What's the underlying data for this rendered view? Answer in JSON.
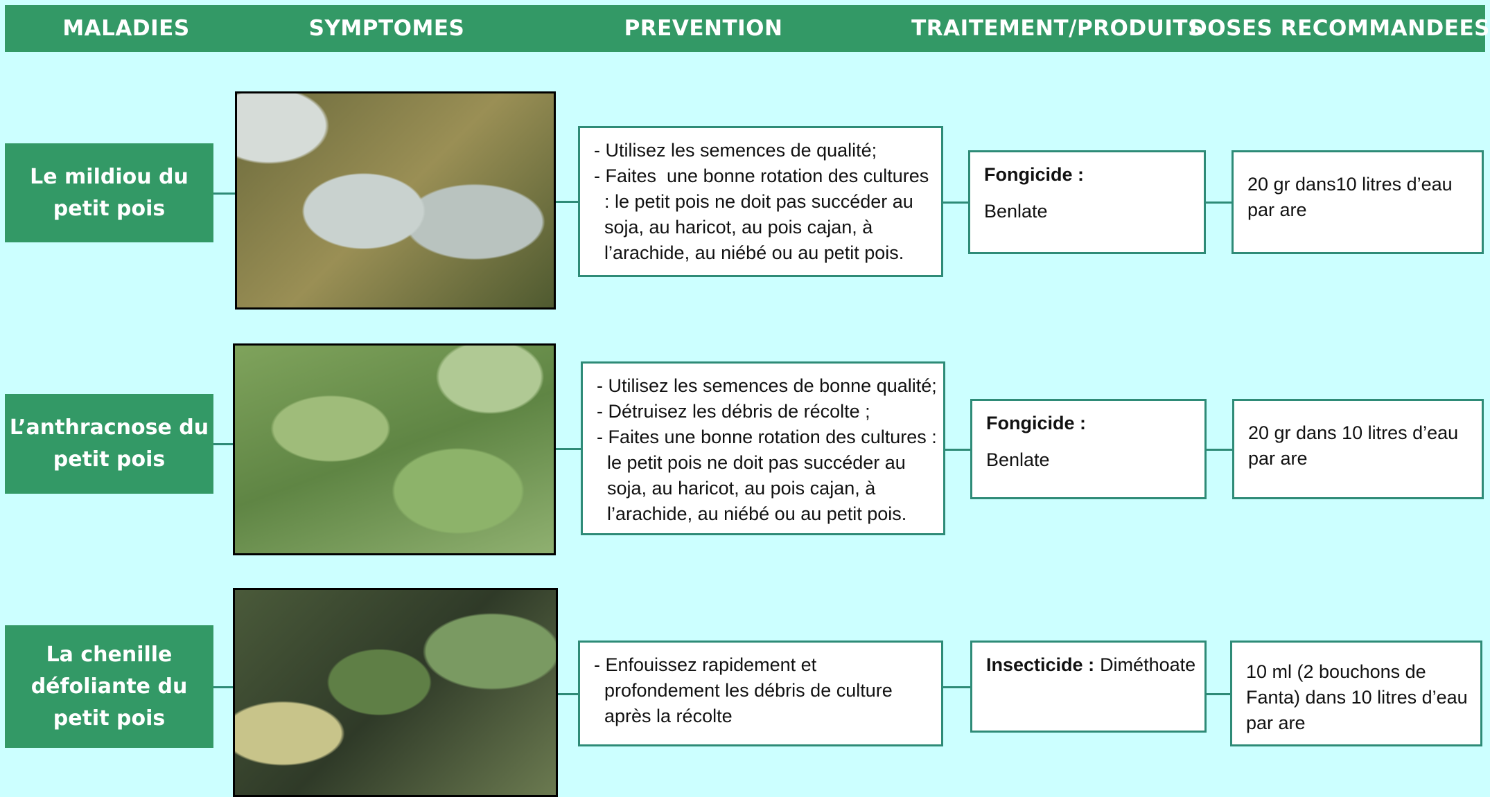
{
  "header": {
    "columns": [
      "MALADIES",
      "SYMPTOMES",
      "PREVENTION",
      "TRAITEMENT/PRODUITS",
      "DOSES RECOMMANDEES"
    ]
  },
  "rows": [
    {
      "disease": [
        "Le mildiou du",
        "petit pois"
      ],
      "prevention": [
        "- Utilisez les semences de qualité;",
        "- Faites  une bonne rotation des cultures",
        "  : le petit pois ne doit pas succéder au",
        "  soja, au haricot, au pois cajan, à",
        "  l’arachide, au niébé ou au petit pois."
      ],
      "treatment": {
        "label": "Fongicide :",
        "product": "Benlate"
      },
      "dose": [
        "20 gr dans10 litres d’eau",
        "par are"
      ]
    },
    {
      "disease": [
        "L’anthracnose du",
        "petit pois"
      ],
      "prevention": [
        "- Utilisez les semences de bonne qualité;",
        "- Détruisez les débris de récolte ;",
        "- Faites une bonne rotation des cultures :",
        "  le petit pois ne doit pas succéder au",
        "  soja, au haricot, au pois cajan, à",
        "  l’arachide, au niébé ou au petit pois."
      ],
      "treatment": {
        "label": "Fongicide :",
        "product": "Benlate"
      },
      "dose": [
        "20 gr dans 10 litres d’eau",
        "par are"
      ]
    },
    {
      "disease": [
        "La chenille",
        "défoliante du",
        "petit pois"
      ],
      "prevention": [
        "- Enfouissez rapidement et",
        "  profondement les débris de culture",
        "  après la récolte"
      ],
      "treatment": {
        "label": "Insecticide :",
        "product": "Diméthoate"
      },
      "dose": [
        "10 ml (2 bouchons de",
        "Fanta) dans 10 litres d’eau",
        "par are"
      ]
    }
  ]
}
